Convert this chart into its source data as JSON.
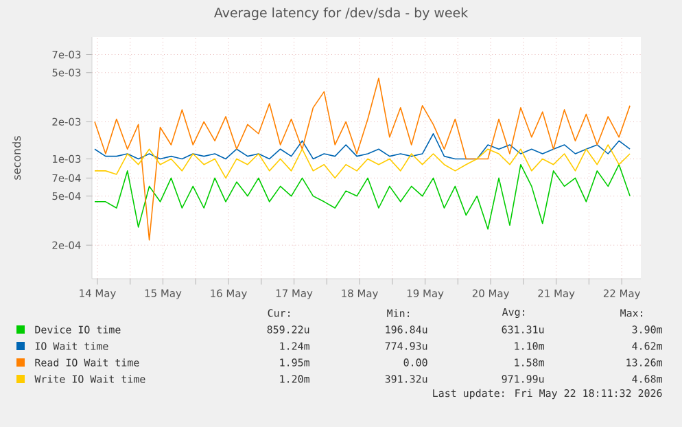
{
  "chart_data": {
    "type": "line",
    "title": "Average latency for /dev/sda - by week",
    "ylabel": "seconds",
    "x": [
      "2026-05-14T11:00",
      "2026-05-14T15:00",
      "2026-05-14T19:00",
      "2026-05-14T23:00",
      "2026-05-15T03:00",
      "2026-05-15T07:00",
      "2026-05-15T11:00",
      "2026-05-15T15:00",
      "2026-05-15T19:00",
      "2026-05-15T23:00",
      "2026-05-16T03:00",
      "2026-05-16T07:00",
      "2026-05-16T11:00",
      "2026-05-16T15:00",
      "2026-05-16T19:00",
      "2026-05-16T23:00",
      "2026-05-17T03:00",
      "2026-05-17T07:00",
      "2026-05-17T11:00",
      "2026-05-17T15:00",
      "2026-05-17T19:00",
      "2026-05-17T23:00",
      "2026-05-18T03:00",
      "2026-05-18T07:00",
      "2026-05-18T11:00",
      "2026-05-18T15:00",
      "2026-05-18T19:00",
      "2026-05-18T23:00",
      "2026-05-19T03:00",
      "2026-05-19T07:00",
      "2026-05-19T11:00",
      "2026-05-19T15:00",
      "2026-05-19T19:00",
      "2026-05-19T23:00",
      "2026-05-20T03:00",
      "2026-05-20T07:00",
      "2026-05-20T11:00",
      "2026-05-20T15:00",
      "2026-05-20T19:00",
      "2026-05-20T23:00",
      "2026-05-21T03:00",
      "2026-05-21T07:00",
      "2026-05-21T11:00",
      "2026-05-21T15:00",
      "2026-05-21T19:00",
      "2026-05-21T23:00",
      "2026-05-22T03:00",
      "2026-05-22T07:00",
      "2026-05-22T11:00",
      "2026-05-22T15:00"
    ],
    "series": [
      {
        "name": "Device IO time",
        "color": "#00cc00",
        "values": [
          0.00045,
          0.00045,
          0.0004,
          0.0008,
          0.00028,
          0.0006,
          0.00045,
          0.0007,
          0.0004,
          0.0006,
          0.0004,
          0.0007,
          0.00045,
          0.00065,
          0.0005,
          0.0007,
          0.00045,
          0.0006,
          0.0005,
          0.0007,
          0.0005,
          0.00045,
          0.0004,
          0.00055,
          0.0005,
          0.0007,
          0.0004,
          0.0006,
          0.00045,
          0.0006,
          0.0005,
          0.0007,
          0.0004,
          0.0006,
          0.00035,
          0.0005,
          0.00027,
          0.0007,
          0.00029,
          0.0009,
          0.0006,
          0.0003,
          0.0008,
          0.0006,
          0.0007,
          0.00045,
          0.0008,
          0.0006,
          0.0009,
          0.0005
        ]
      },
      {
        "name": "IO Wait time",
        "color": "#0066b3",
        "values": [
          0.0012,
          0.00105,
          0.00105,
          0.0011,
          0.001,
          0.0011,
          0.001,
          0.00105,
          0.001,
          0.0011,
          0.00105,
          0.0011,
          0.001,
          0.0012,
          0.00105,
          0.0011,
          0.001,
          0.0012,
          0.00105,
          0.0014,
          0.001,
          0.0011,
          0.00105,
          0.0013,
          0.00105,
          0.0011,
          0.0012,
          0.00105,
          0.0011,
          0.00105,
          0.0011,
          0.0016,
          0.00105,
          0.001,
          0.001,
          0.001,
          0.0013,
          0.0012,
          0.0013,
          0.0011,
          0.0012,
          0.0011,
          0.0012,
          0.0013,
          0.0011,
          0.0012,
          0.0013,
          0.0011,
          0.0014,
          0.0012
        ]
      },
      {
        "name": "Read IO Wait time",
        "color": "#ff8000",
        "values": [
          0.002,
          0.0011,
          0.0021,
          0.0012,
          0.0019,
          0.00022,
          0.0018,
          0.0013,
          0.0025,
          0.0013,
          0.002,
          0.0014,
          0.0022,
          0.0012,
          0.0019,
          0.0016,
          0.0028,
          0.0013,
          0.0021,
          0.0012,
          0.0026,
          0.0035,
          0.0013,
          0.002,
          0.0011,
          0.0021,
          0.0045,
          0.0015,
          0.0026,
          0.0013,
          0.0027,
          0.0019,
          0.0012,
          0.0021,
          0.001,
          0.001,
          0.001,
          0.0021,
          0.0011,
          0.0026,
          0.0015,
          0.0024,
          0.0012,
          0.0025,
          0.0014,
          0.0023,
          0.0013,
          0.0022,
          0.0015,
          0.0027
        ]
      },
      {
        "name": "Write IO Wait time",
        "color": "#ffcc00",
        "values": [
          0.0008,
          0.0008,
          0.00075,
          0.0011,
          0.0009,
          0.0012,
          0.0009,
          0.001,
          0.0008,
          0.0011,
          0.0009,
          0.001,
          0.0007,
          0.001,
          0.0009,
          0.0011,
          0.0008,
          0.001,
          0.0008,
          0.0012,
          0.0008,
          0.0009,
          0.0007,
          0.0009,
          0.0008,
          0.001,
          0.0009,
          0.001,
          0.0008,
          0.0011,
          0.0009,
          0.0011,
          0.0009,
          0.0008,
          0.0009,
          0.001,
          0.0012,
          0.0011,
          0.0009,
          0.0012,
          0.0008,
          0.001,
          0.0009,
          0.0011,
          0.0008,
          0.0012,
          0.0009,
          0.0013,
          0.0009,
          0.0011
        ]
      }
    ],
    "xlim": [
      "2026-05-14T10:00",
      "2026-05-22T19:00"
    ],
    "xticks": [
      {
        "value": "2026-05-14T12:00",
        "label": "14 May"
      },
      {
        "value": "2026-05-15T00:00",
        "label": null
      },
      {
        "value": "2026-05-15T12:00",
        "label": "15 May"
      },
      {
        "value": "2026-05-16T00:00",
        "label": null
      },
      {
        "value": "2026-05-16T12:00",
        "label": "16 May"
      },
      {
        "value": "2026-05-17T00:00",
        "label": null
      },
      {
        "value": "2026-05-17T12:00",
        "label": "17 May"
      },
      {
        "value": "2026-05-18T00:00",
        "label": null
      },
      {
        "value": "2026-05-18T12:00",
        "label": "18 May"
      },
      {
        "value": "2026-05-19T00:00",
        "label": null
      },
      {
        "value": "2026-05-19T12:00",
        "label": "19 May"
      },
      {
        "value": "2026-05-20T00:00",
        "label": null
      },
      {
        "value": "2026-05-20T12:00",
        "label": "20 May"
      },
      {
        "value": "2026-05-21T00:00",
        "label": null
      },
      {
        "value": "2026-05-21T12:00",
        "label": "21 May"
      },
      {
        "value": "2026-05-22T00:00",
        "label": null
      },
      {
        "value": "2026-05-22T12:00",
        "label": "22 May"
      }
    ],
    "ylim": [
      0.000107,
      0.0097
    ],
    "yticks": [
      {
        "value": 0.0002,
        "label": "2e-04"
      },
      {
        "value": 0.0005,
        "label": "5e-04"
      },
      {
        "value": 0.0007,
        "label": "7e-04"
      },
      {
        "value": 0.001,
        "label": "1e-03"
      },
      {
        "value": 0.002,
        "label": "2e-03"
      },
      {
        "value": 0.005,
        "label": "5e-03"
      },
      {
        "value": 0.007,
        "label": "7e-03"
      }
    ],
    "log": "y",
    "grid": true,
    "legend": "bottom",
    "line_style": "solid",
    "annotations": [
      "Cur:",
      "Min:",
      "Avg:",
      "Max:",
      "859.22u",
      "196.84u",
      "631.31u",
      "3.90m",
      "1.24m",
      "774.93u",
      "1.10m",
      "4.62m",
      "1.95m",
      "0.00",
      "1.58m",
      "13.26m",
      "1.20m",
      "391.32u",
      "971.99u",
      "4.68m",
      "Last update: Fri May 22 18:11:32 2026"
    ]
  }
}
